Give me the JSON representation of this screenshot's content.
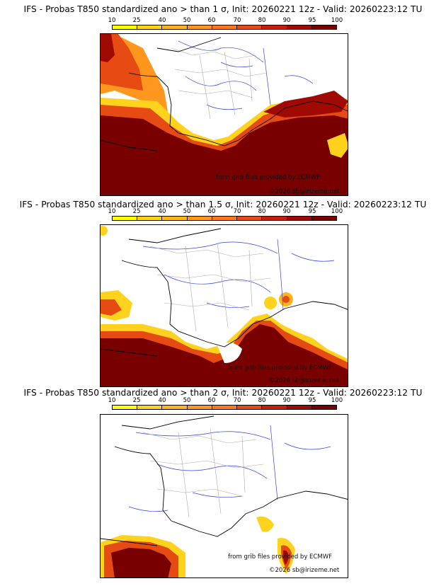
{
  "panels": [
    {
      "title": "IFS - Probas T850  standardized ano > than 1 σ, Init: 20260221 12z - Valid: 20260223:12 TU"
    },
    {
      "title": "IFS - Probas T850  standardized ano > than 1.5 σ, Init: 20260221 12z - Valid: 20260223:12 TU"
    },
    {
      "title": "IFS - Probas T850  standardized ano > than 2 σ, Init: 20260221 12z - Valid: 20260223:12 TU"
    }
  ],
  "colorbar": {
    "ticks": [
      "10",
      "25",
      "40",
      "50",
      "60",
      "70",
      "80",
      "90",
      "95",
      "100"
    ],
    "colors": [
      "#ffff00",
      "#ffd21e",
      "#ffb41e",
      "#ff961e",
      "#ff781e",
      "#e64b14",
      "#c81e0a",
      "#a00a05",
      "#780000"
    ]
  },
  "credits": {
    "source": "from grib files provided by ECMWF",
    "copyright": "©2026 sb@irizeme.net"
  },
  "colors": {
    "river": "#3344dd",
    "border": "#aaaaaa",
    "coast": "#000000"
  }
}
